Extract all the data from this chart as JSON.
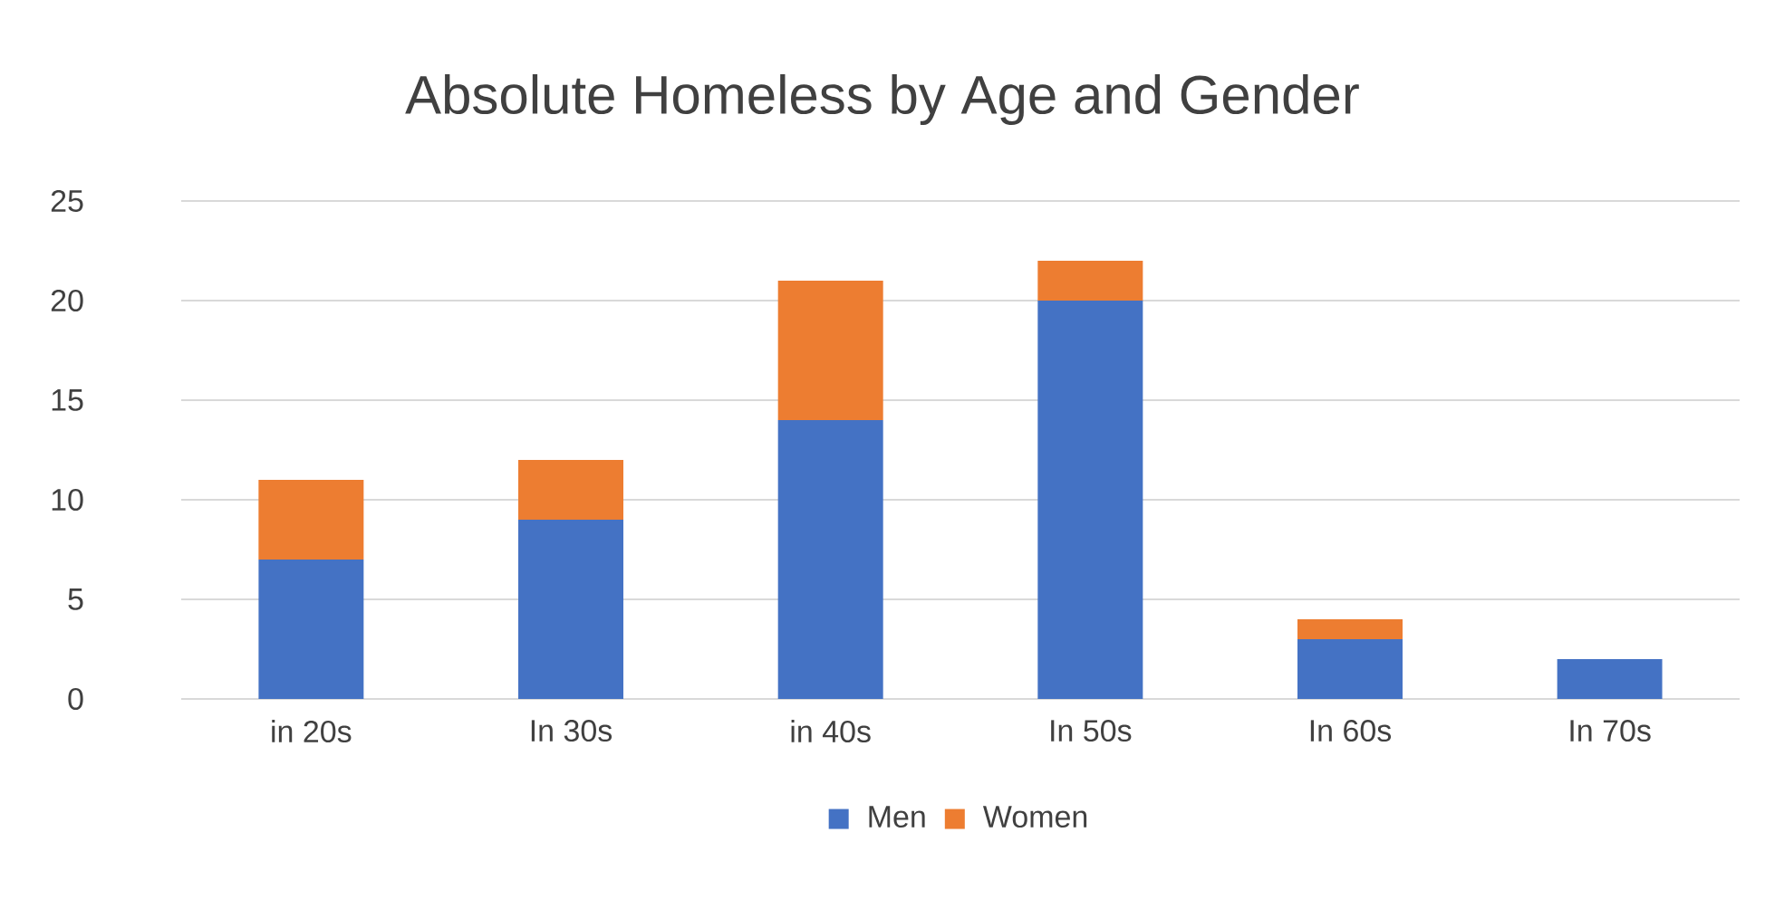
{
  "chart_data": {
    "type": "bar",
    "title": "Absolute Homeless by Age and Gender",
    "categories": [
      "in 20s",
      "In 30s",
      "in 40s",
      "In 50s",
      "In 60s",
      "In 70s"
    ],
    "series": [
      {
        "name": "Men",
        "color": "#4472c4",
        "values": [
          7,
          9,
          14,
          20,
          3,
          2
        ]
      },
      {
        "name": "Women",
        "color": "#ed7d31",
        "values": [
          4,
          3,
          7,
          2,
          1,
          0
        ]
      }
    ],
    "stacked": true,
    "ylim": [
      0,
      25
    ],
    "yticks": [
      0,
      5,
      10,
      15,
      20,
      25
    ],
    "grid": "y",
    "legend": "bottom"
  }
}
